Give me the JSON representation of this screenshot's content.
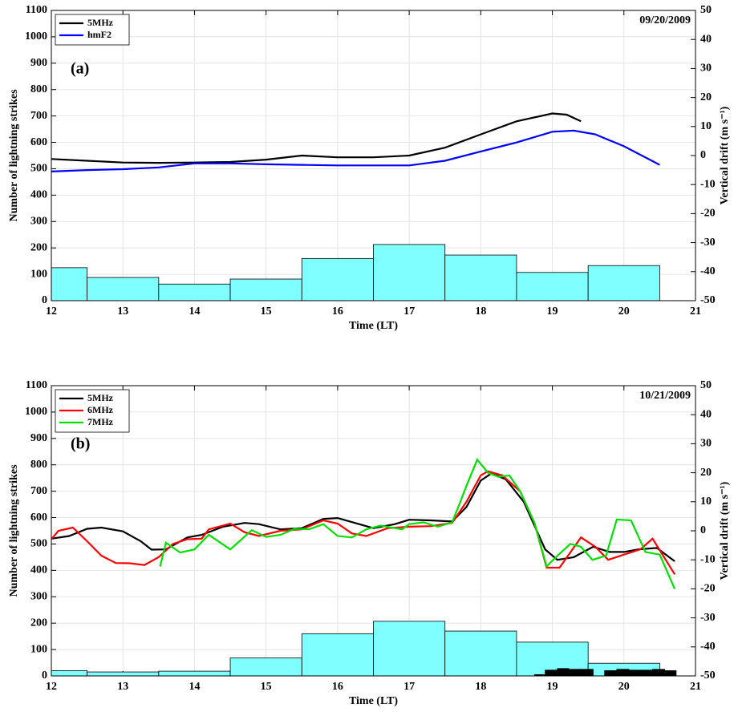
{
  "chart_data": [
    {
      "type": "histogram",
      "panel_label": "(a)",
      "date": "09/20/2009",
      "xlabel": "Time (LT)",
      "ylabel": "Number of lightning strikes",
      "y2label": "Vertical drift (m s⁻¹)",
      "xlim": [
        12,
        21
      ],
      "xticks": [
        12,
        13,
        14,
        15,
        16,
        17,
        18,
        19,
        20,
        21
      ],
      "ylim": [
        0,
        1100
      ],
      "yticks": [
        0,
        100,
        200,
        300,
        400,
        500,
        600,
        700,
        800,
        900,
        1000,
        1100
      ],
      "y2lim": [
        -50,
        50
      ],
      "y2ticks": [
        -50,
        -40,
        -30,
        -20,
        -10,
        0,
        10,
        20,
        30,
        40,
        50
      ],
      "grid": true,
      "legend": "upper left",
      "bins": [
        12,
        12.5,
        13.5,
        14.5,
        15.5,
        16.5,
        17.5,
        18.5,
        19.5,
        20.5
      ],
      "values": [
        125,
        88,
        63,
        82,
        160,
        213,
        173,
        107,
        133
      ],
      "color": "#7fffff",
      "series": [
        {
          "name": "5MHz",
          "color": "#000000",
          "axis": "y2",
          "x": [
            12,
            12.5,
            13,
            13.5,
            14,
            14.5,
            15,
            15.5,
            16,
            16.5,
            17,
            17.5,
            18,
            18.5,
            19,
            19.2,
            19.4
          ],
          "values": [
            -1.2,
            -1.8,
            -2.4,
            -2.5,
            -2.4,
            -2.2,
            -1.4,
            0,
            -0.6,
            -0.6,
            0,
            2.7,
            7.3,
            11.8,
            14.5,
            14.1,
            11.8
          ]
        },
        {
          "name": "hmF2",
          "color": "#0000ff",
          "axis": "y2",
          "x": [
            12,
            12.5,
            13,
            13.5,
            14,
            14.5,
            15,
            15.5,
            16,
            16.5,
            17,
            17.5,
            18,
            18.5,
            19,
            19.3,
            19.6,
            20,
            20.5
          ],
          "values": [
            -5.5,
            -5,
            -4.7,
            -4.1,
            -2.7,
            -2.7,
            -3,
            -3.2,
            -3.4,
            -3.4,
            -3.4,
            -1.8,
            1.4,
            4.5,
            8.2,
            8.6,
            7.3,
            3.2,
            -3.2
          ]
        }
      ]
    },
    {
      "type": "histogram",
      "panel_label": "(b)",
      "date": "10/21/2009",
      "xlabel": "Time (LT)",
      "ylabel": "Number of lightning strikes",
      "y2label": "Vertical drift (m s⁻¹)",
      "xlim": [
        12,
        21
      ],
      "xticks": [
        12,
        13,
        14,
        15,
        16,
        17,
        18,
        19,
        20,
        21
      ],
      "ylim": [
        0,
        1100
      ],
      "yticks": [
        0,
        100,
        200,
        300,
        400,
        500,
        600,
        700,
        800,
        900,
        1000,
        1100
      ],
      "y2lim": [
        -50,
        50
      ],
      "y2ticks": [
        -50,
        -40,
        -30,
        -20,
        -10,
        0,
        10,
        20,
        30,
        40,
        50
      ],
      "grid": true,
      "legend": "upper left",
      "bins": [
        12,
        12.5,
        13.5,
        14.5,
        15.5,
        16.5,
        17.5,
        18.5,
        19.5,
        20.5
      ],
      "values": [
        20,
        15,
        18,
        68,
        160,
        207,
        170,
        128,
        48
      ],
      "color": "#7fffff",
      "fine_bins": [
        18.75,
        18.9,
        19.07,
        19.23,
        19.4,
        19.57,
        19.73,
        19.9,
        20.07,
        20.23,
        20.4,
        20.57,
        20.73
      ],
      "fine_values": [
        5,
        22,
        28,
        25,
        25,
        0,
        20,
        25,
        22,
        22,
        25,
        20
      ],
      "fine_color": "#000000",
      "series": [
        {
          "name": "5MHz",
          "color": "#000000",
          "axis": "y2",
          "x": [
            12,
            12.25,
            12.5,
            12.7,
            13,
            13.25,
            13.4,
            13.6,
            13.9,
            14.1,
            14.4,
            14.7,
            14.9,
            15.2,
            15.5,
            15.8,
            16,
            16.3,
            16.5,
            16.8,
            17,
            17.3,
            17.6,
            17.8,
            18,
            18.15,
            18.35,
            18.6,
            18.9,
            19.07,
            19.3,
            19.57,
            19.8,
            20,
            20.2,
            20.46,
            20.71
          ],
          "values": [
            -2.7,
            -1.8,
            0.7,
            1.1,
            -0.2,
            -3.6,
            -6.5,
            -6.4,
            -2.3,
            -1.4,
            1.4,
            2.7,
            2.3,
            0.5,
            0.9,
            4.1,
            4.4,
            2.3,
            0.9,
            2.3,
            3.8,
            3.6,
            3.2,
            8.2,
            17.3,
            19.8,
            17.7,
            10,
            -6.4,
            -10,
            -9.1,
            -5.5,
            -7.3,
            -7.3,
            -6.4,
            -5.9,
            -10.5
          ]
        },
        {
          "name": "6MHz",
          "color": "#ff0000",
          "axis": "y2",
          "x": [
            12,
            12.1,
            12.3,
            12.5,
            12.7,
            12.9,
            13.1,
            13.3,
            13.5,
            13.7,
            13.9,
            14.1,
            14.2,
            14.5,
            14.7,
            14.9,
            15.2,
            15.5,
            15.8,
            16,
            16.2,
            16.4,
            16.7,
            17,
            17.3,
            17.6,
            17.8,
            18,
            18.1,
            18.3,
            18.55,
            18.75,
            18.92,
            19.1,
            19.4,
            19.6,
            19.78,
            20,
            20.23,
            20.4,
            20.71
          ],
          "values": [
            -2.9,
            0,
            1.1,
            -3.6,
            -8.6,
            -11.1,
            -11.2,
            -11.8,
            -9.1,
            -4.5,
            -2.9,
            -2.7,
            0.5,
            2.5,
            -0.5,
            -1.8,
            0,
            0.5,
            3.6,
            2.5,
            -0.9,
            -1.8,
            0.9,
            1.4,
            1.6,
            2.7,
            10,
            19.1,
            20.5,
            19.1,
            13.6,
            2.7,
            -12.7,
            -12.7,
            -2.3,
            -5.5,
            -10,
            -8.2,
            -6.4,
            -2.7,
            -15
          ]
        },
        {
          "name": "7MHz",
          "color": "#00e000",
          "axis": "y2",
          "x": [
            13.52,
            13.6,
            13.8,
            14,
            14.2,
            14.5,
            14.8,
            15,
            15.2,
            15.4,
            15.6,
            15.8,
            16,
            16.2,
            16.4,
            16.6,
            16.9,
            17,
            17.2,
            17.4,
            17.6,
            17.7,
            17.8,
            17.95,
            18.1,
            18.25,
            18.4,
            18.55,
            18.75,
            18.92,
            19.05,
            19.25,
            19.4,
            19.56,
            19.75,
            19.9,
            20.1,
            20.3,
            20.5,
            20.71
          ],
          "values": [
            -12.3,
            -4.1,
            -7.5,
            -6.4,
            -1.4,
            -6.4,
            0.2,
            -2.1,
            -1.4,
            0.7,
            0.5,
            2.3,
            -1.8,
            -2.3,
            0.5,
            1.8,
            0.5,
            2.3,
            2.9,
            1.4,
            2.9,
            9.1,
            15.5,
            24.5,
            20,
            18.6,
            19.1,
            13.6,
            2.7,
            -12.3,
            -9.1,
            -4.5,
            -5.5,
            -10,
            -8.6,
            3.9,
            3.6,
            -7.3,
            -8.2,
            -20
          ]
        }
      ]
    }
  ]
}
